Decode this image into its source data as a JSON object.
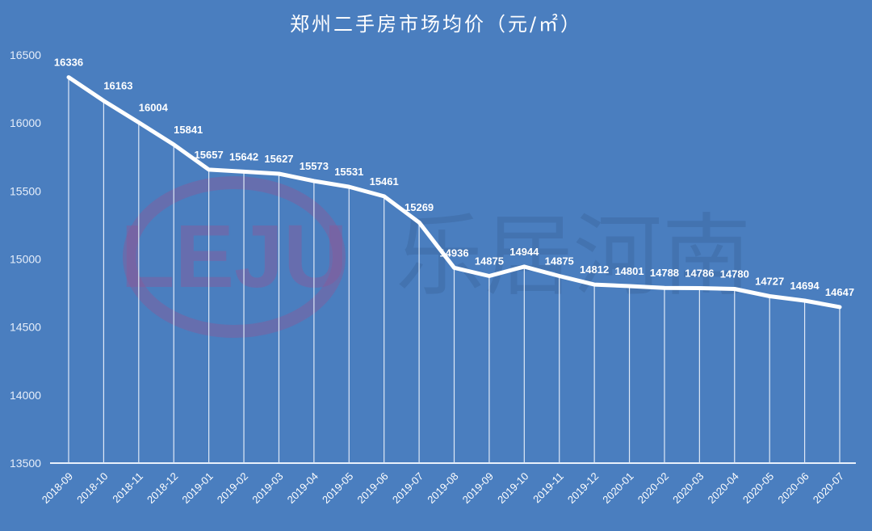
{
  "chart_data": {
    "type": "line",
    "title": "郑州二手房市场均价（元/㎡）",
    "xlabel": "",
    "ylabel": "",
    "ylim": [
      13500,
      16500
    ],
    "yticks": [
      13500,
      14000,
      14500,
      15000,
      15500,
      16000,
      16500
    ],
    "grid": "vertical drop lines at each point",
    "legend": "none",
    "categories": [
      "2018-09",
      "2018-10",
      "2018-11",
      "2018-12",
      "2019-01",
      "2019-02",
      "2019-03",
      "2019-04",
      "2019-05",
      "2019-06",
      "2019-07",
      "2019-08",
      "2019-09",
      "2019-10",
      "2019-11",
      "2019-12",
      "2020-01",
      "2020-02",
      "2020-03",
      "2020-04",
      "2020-05",
      "2020-06",
      "2020-07"
    ],
    "series": [
      {
        "name": "均价",
        "values": [
          16336,
          16163,
          16004,
          15841,
          15657,
          15642,
          15627,
          15573,
          15531,
          15461,
          15269,
          14936,
          14875,
          14944,
          14875,
          14812,
          14801,
          14788,
          14786,
          14780,
          14727,
          14694,
          14647
        ]
      }
    ],
    "colors": {
      "background": "#4a7ebf",
      "line": "#ffffff",
      "watermark": "#8a5a9a"
    }
  },
  "watermark": {
    "logo": "LEJU",
    "text": "乐居河南"
  }
}
